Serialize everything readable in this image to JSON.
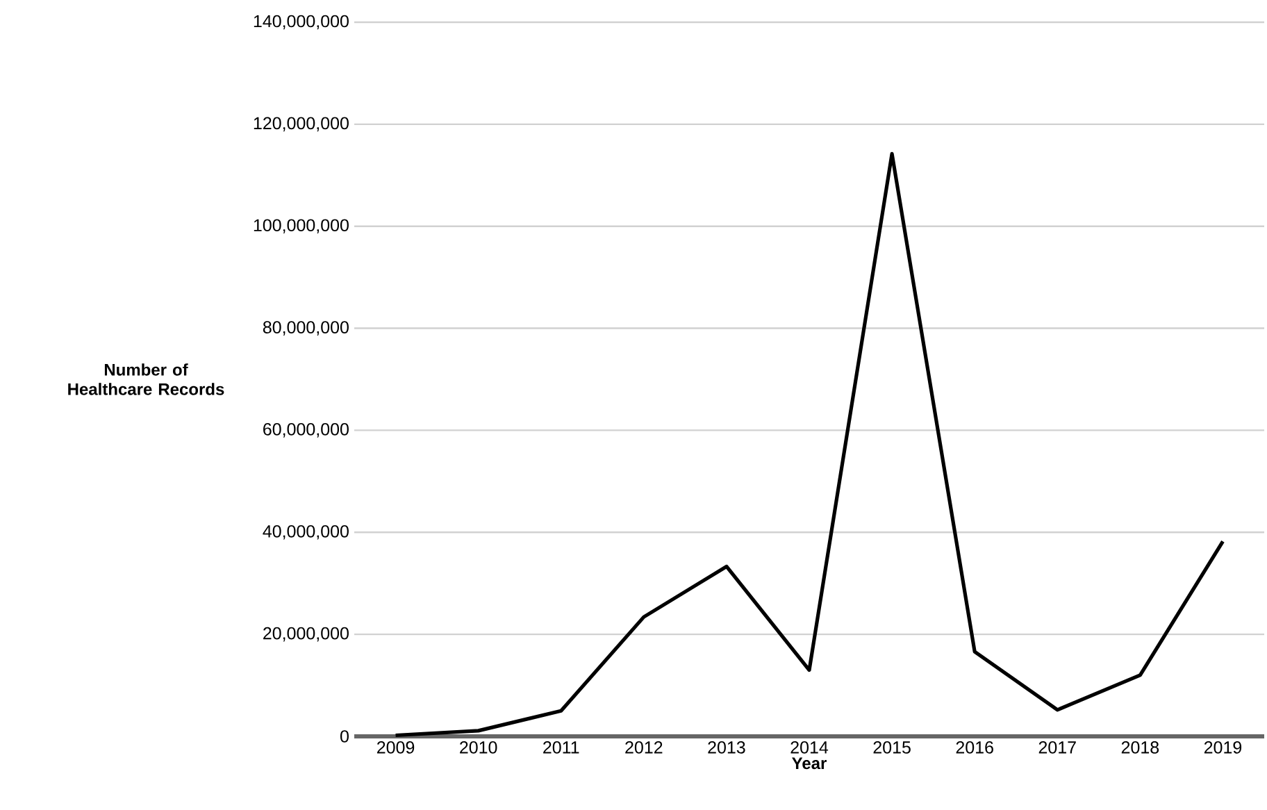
{
  "chart_data": {
    "type": "line",
    "xlabel": "Year",
    "ylabel": "Number of Healthcare Records",
    "categories": [
      "2009",
      "2010",
      "2011",
      "2012",
      "2013",
      "2014",
      "2015",
      "2016",
      "2017",
      "2018",
      "2019"
    ],
    "series": [
      {
        "color": "#000000",
        "values": [
          200000,
          1100000,
          5000000,
          23400000,
          33300000,
          13000000,
          114200000,
          16600000,
          5200000,
          12000000,
          38200000
        ]
      }
    ],
    "ylim": [
      0,
      140000000
    ],
    "yticks": [
      {
        "value": 0,
        "label": "0"
      },
      {
        "value": 20000000,
        "label": "20,000,000"
      },
      {
        "value": 40000000,
        "label": "40,000,000"
      },
      {
        "value": 60000000,
        "label": "60,000,000"
      },
      {
        "value": 80000000,
        "label": "80,000,000"
      },
      {
        "value": 100000000,
        "label": "100,000,000"
      },
      {
        "value": 120000000,
        "label": "120,000,000"
      },
      {
        "value": 140000000,
        "label": "140,000,000"
      }
    ],
    "grid": "y",
    "marker": "none",
    "line_style": "solid"
  }
}
